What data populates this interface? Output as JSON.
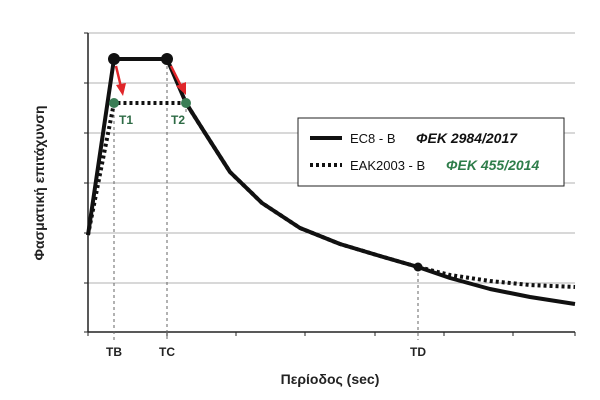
{
  "chart_data": {
    "type": "line",
    "title": "",
    "xlabel": "Περίοδος (sec)",
    "ylabel": "Φασματική επιτάχυνση",
    "x_ticks": [
      "TB",
      "TC",
      "TD"
    ],
    "grid": true,
    "legend_position": "right",
    "series": [
      {
        "name": "EC8 - B",
        "ref": "ΦΕΚ 2984/2017",
        "style": "solid",
        "color": "#111111",
        "ref_color": "#111111"
      },
      {
        "name": "EAK2003 - B",
        "ref": "ΦΕΚ 455/2014",
        "style": "dotted",
        "color": "#111111",
        "ref_color": "#2e7d4a"
      }
    ],
    "points": [
      {
        "label": "T1",
        "color": "#3a7d55"
      },
      {
        "label": "T2",
        "color": "#3a7d55"
      }
    ],
    "arrow_color": "#e0262a"
  }
}
